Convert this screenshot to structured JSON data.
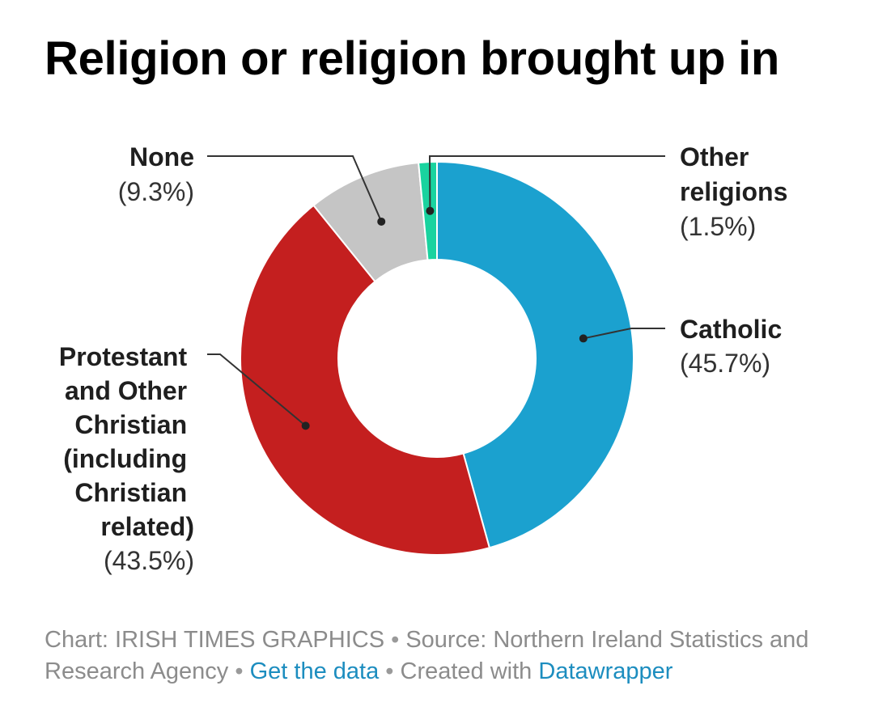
{
  "title": "Religion or religion brought up in",
  "chart_data": {
    "type": "pie",
    "title": "Religion or religion brought up in",
    "donut": true,
    "start": "top, clockwise",
    "slices": [
      {
        "label": "Catholic",
        "value": 45.7,
        "value_label": "(45.7%)",
        "color": "#1ba1cf"
      },
      {
        "label": "Protestant and Other Christian (including Christian related)",
        "value": 43.5,
        "value_label": "(43.5%)",
        "color": "#c41f1f"
      },
      {
        "label": "None",
        "value": 9.3,
        "value_label": "(9.3%)",
        "color": "#c5c5c5"
      },
      {
        "label": "Other religions",
        "value": 1.5,
        "value_label": "(1.5%)",
        "color": "#19d39f"
      }
    ]
  },
  "footer": {
    "chart_credit": "Chart: IRISH TIMES GRAPHICS",
    "separator": "•",
    "source": "Source: Northern Ireland Statistics and Research Agency",
    "get_data_link": "Get the data",
    "created_with": "Created with",
    "datawrapper_link": "Datawrapper"
  }
}
